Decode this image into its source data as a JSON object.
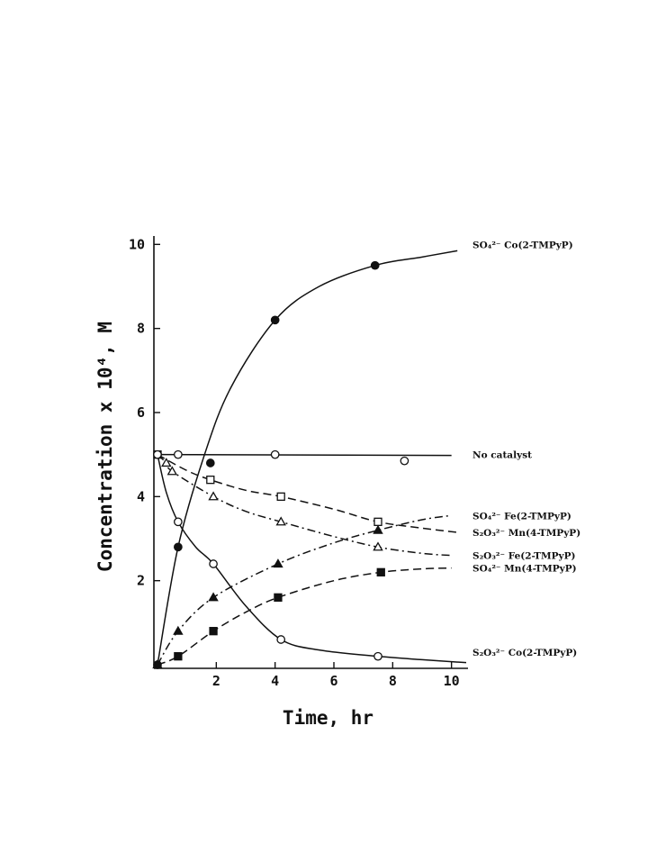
{
  "chart_data": {
    "type": "line",
    "xlabel": "Time, hr",
    "ylabel": "Concentration x 10⁴, M",
    "xlim": [
      0,
      10.5
    ],
    "ylim": [
      0,
      10.2
    ],
    "xticks": [
      2,
      4,
      6,
      8,
      10
    ],
    "yticks": [
      2,
      4,
      6,
      8,
      10
    ],
    "grid": false,
    "legend": "labels at right end of each curve",
    "series": [
      {
        "name": "SO₄²⁻ Co(2-TMPyP)",
        "label_parts": [
          "SO₄²⁻",
          "Co(2-TMPyP)"
        ],
        "label_at_y": 10.0,
        "style": "solid",
        "marker": "filled-circle",
        "points": [
          [
            0,
            0
          ],
          [
            0.7,
            2.8
          ],
          [
            1.8,
            4.8
          ],
          [
            4.0,
            8.2
          ],
          [
            7.4,
            9.5
          ]
        ],
        "curve": [
          [
            0,
            0
          ],
          [
            0.7,
            2.8
          ],
          [
            1.6,
            5.0
          ],
          [
            2.5,
            6.6
          ],
          [
            4.0,
            8.2
          ],
          [
            5.5,
            9.0
          ],
          [
            7.4,
            9.5
          ],
          [
            9.0,
            9.7
          ],
          [
            10.2,
            9.85
          ]
        ]
      },
      {
        "name": "No catalyst",
        "label_parts": [
          "No catalyst"
        ],
        "label_at_y": 5.0,
        "style": "solid",
        "marker": "open-circle",
        "points": [
          [
            0,
            5.0
          ],
          [
            0.7,
            5.0
          ],
          [
            4.0,
            5.0
          ],
          [
            8.4,
            4.85
          ]
        ],
        "curve": [
          [
            0,
            5.0
          ],
          [
            10.0,
            4.98
          ]
        ]
      },
      {
        "name": "SO₄²⁻ Fe(2-TMPyP)",
        "label_parts": [
          "SO₄²⁻",
          "Fe(2-TMPyP)"
        ],
        "label_at_y": 3.55,
        "style": "dashdot",
        "marker": "filled-triangle",
        "points": [
          [
            0,
            0
          ],
          [
            0.7,
            0.8
          ],
          [
            1.9,
            1.6
          ],
          [
            4.1,
            2.4
          ],
          [
            7.5,
            3.2
          ]
        ],
        "curve": [
          [
            0,
            0
          ],
          [
            0.7,
            0.8
          ],
          [
            1.9,
            1.6
          ],
          [
            4.1,
            2.4
          ],
          [
            6.0,
            2.9
          ],
          [
            7.5,
            3.2
          ],
          [
            9.0,
            3.45
          ],
          [
            10.0,
            3.55
          ]
        ]
      },
      {
        "name": "S₂O₃²⁻ Mn(4-TMPyP)",
        "label_parts": [
          "S₂O₃²⁻",
          "Mn(4-TMPyP)"
        ],
        "label_at_y": 3.15,
        "style": "dashed",
        "marker": "open-square",
        "points": [
          [
            0,
            5.0
          ],
          [
            1.8,
            4.4
          ],
          [
            4.2,
            4.0
          ],
          [
            7.5,
            3.4
          ]
        ],
        "curve": [
          [
            0,
            5.0
          ],
          [
            1.0,
            4.62
          ],
          [
            1.8,
            4.4
          ],
          [
            3.0,
            4.15
          ],
          [
            4.2,
            4.0
          ],
          [
            6.0,
            3.7
          ],
          [
            7.5,
            3.4
          ],
          [
            9.0,
            3.25
          ],
          [
            10.2,
            3.15
          ]
        ]
      },
      {
        "name": "S₂O₃²⁻ Fe(2-TMPyP)",
        "label_parts": [
          "S₂O₃²⁻",
          "Fe(2-TMPyP)"
        ],
        "label_at_y": 2.6,
        "style": "dashdot",
        "marker": "open-triangle",
        "points": [
          [
            0.3,
            4.8
          ],
          [
            0.5,
            4.6
          ],
          [
            1.9,
            4.0
          ],
          [
            4.2,
            3.4
          ],
          [
            7.5,
            2.8
          ]
        ],
        "curve": [
          [
            0,
            5.0
          ],
          [
            0.3,
            4.8
          ],
          [
            0.5,
            4.6
          ],
          [
            1.9,
            4.0
          ],
          [
            3.0,
            3.65
          ],
          [
            4.2,
            3.4
          ],
          [
            6.0,
            3.05
          ],
          [
            7.5,
            2.8
          ],
          [
            9.0,
            2.65
          ],
          [
            10.0,
            2.6
          ]
        ]
      },
      {
        "name": "SO₄²⁻ Mn(4-TMPyP)",
        "label_parts": [
          "SO₄²⁻",
          "Mn(4-TMPyP)"
        ],
        "label_at_y": 2.3,
        "style": "dashed",
        "marker": "filled-square",
        "points": [
          [
            0.7,
            0.2
          ],
          [
            1.9,
            0.8
          ],
          [
            4.1,
            1.6
          ],
          [
            7.6,
            2.2
          ]
        ],
        "curve": [
          [
            0,
            0
          ],
          [
            0.7,
            0.2
          ],
          [
            1.9,
            0.8
          ],
          [
            3.0,
            1.25
          ],
          [
            4.1,
            1.6
          ],
          [
            6.0,
            2.0
          ],
          [
            7.6,
            2.2
          ],
          [
            9.0,
            2.28
          ],
          [
            10.0,
            2.3
          ]
        ]
      },
      {
        "name": "S₂O₃²⁻ Co(2-TMPyP)",
        "label_parts": [
          "S₂O₃²⁻",
          "Co(2-TMPyP)"
        ],
        "label_at_y": 0.3,
        "style": "solid",
        "marker": "open-circle",
        "points": [
          [
            0,
            5.0
          ],
          [
            0.7,
            3.4
          ],
          [
            1.9,
            2.4
          ],
          [
            4.2,
            0.6
          ],
          [
            7.5,
            0.2
          ]
        ],
        "curve": [
          [
            0,
            5.0
          ],
          [
            0.3,
            4.1
          ],
          [
            0.7,
            3.4
          ],
          [
            1.3,
            2.8
          ],
          [
            1.9,
            2.4
          ],
          [
            3.0,
            1.4
          ],
          [
            4.2,
            0.6
          ],
          [
            5.5,
            0.35
          ],
          [
            7.5,
            0.2
          ],
          [
            9.0,
            0.12
          ],
          [
            10.5,
            0.05
          ]
        ]
      }
    ]
  }
}
